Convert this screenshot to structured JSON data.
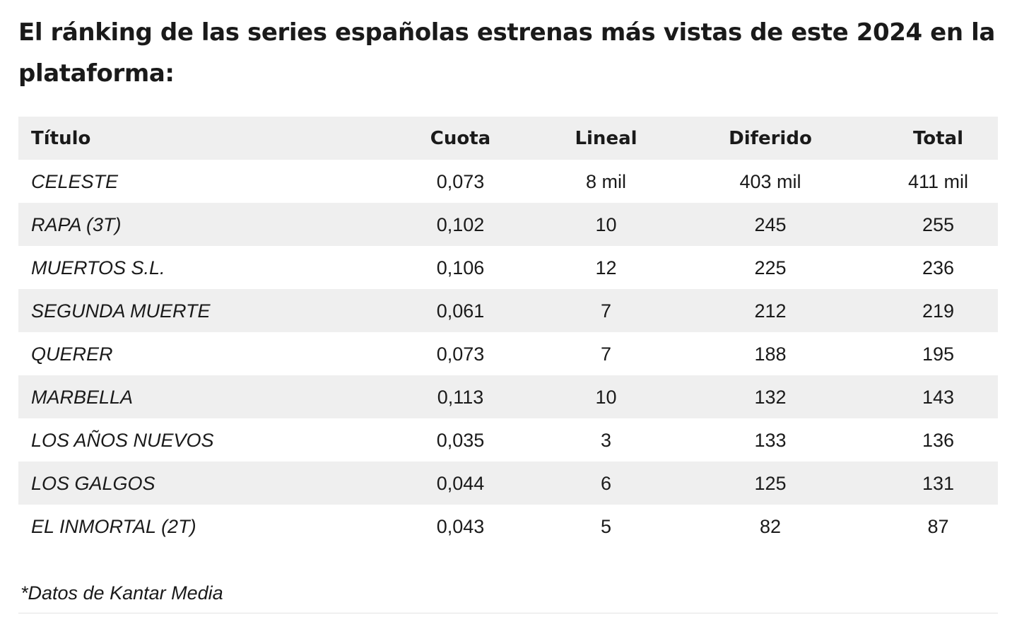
{
  "heading": "El ránking de las series españolas estrenas más vistas de este 2024 en la plataforma:",
  "table": {
    "headers": [
      "Título",
      "Cuota",
      "Lineal",
      "Diferido",
      "Total"
    ],
    "rows": [
      [
        "CELESTE",
        "0,073",
        "8 mil",
        "403 mil",
        "411 mil"
      ],
      [
        "RAPA (3T)",
        "0,102",
        "10",
        "245",
        "255"
      ],
      [
        "MUERTOS S.L.",
        "0,106",
        "12",
        "225",
        "236"
      ],
      [
        "SEGUNDA MUERTE",
        "0,061",
        "7",
        "212",
        "219"
      ],
      [
        "QUERER",
        "0,073",
        "7",
        "188",
        "195"
      ],
      [
        "MARBELLA",
        "0,113",
        "10",
        "132",
        "143"
      ],
      [
        "LOS AÑOS NUEVOS",
        "0,035",
        "3",
        "133",
        "136"
      ],
      [
        "LOS GALGOS",
        "0,044",
        "6",
        "125",
        "131"
      ],
      [
        "EL INMORTAL (2T)",
        "0,043",
        "5",
        "82",
        "87"
      ]
    ]
  },
  "footnote": "*Datos de Kantar Media"
}
